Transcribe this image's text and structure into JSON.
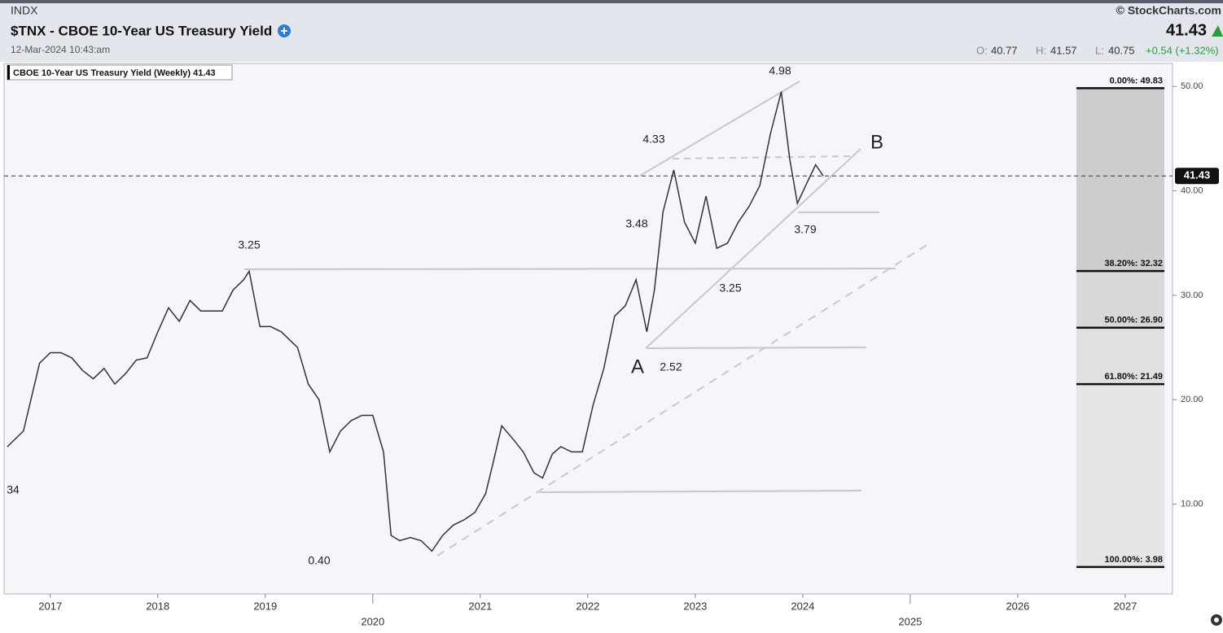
{
  "header": {
    "exchange": "INDX",
    "title": "$TNX - CBOE 10-Year US Treasury Yield",
    "timestamp": "12-Mar-2024 10:43:am",
    "brand": "© StockCharts.com",
    "last": "41.43",
    "open_label": "O:",
    "open": "40.77",
    "high_label": "H:",
    "high": "41.57",
    "low_label": "L:",
    "low": "40.75",
    "change": "+0.54 (+1.32%)"
  },
  "chart_data": {
    "type": "line",
    "series": [
      {
        "name": "CBOE 10-Year US Treasury Yield (Weekly)",
        "color": "#333333",
        "x": [
          2016.6,
          2016.75,
          2016.9,
          2017.0,
          2017.1,
          2017.2,
          2017.3,
          2017.4,
          2017.5,
          2017.6,
          2017.7,
          2017.8,
          2017.9,
          2018.0,
          2018.1,
          2018.2,
          2018.3,
          2018.4,
          2018.5,
          2018.6,
          2018.7,
          2018.8,
          2018.85,
          2018.95,
          2019.05,
          2019.15,
          2019.3,
          2019.4,
          2019.5,
          2019.6,
          2019.7,
          2019.8,
          2019.9,
          2020.0,
          2020.1,
          2020.17,
          2020.25,
          2020.35,
          2020.45,
          2020.55,
          2020.65,
          2020.75,
          2020.85,
          2020.95,
          2021.05,
          2021.12,
          2021.2,
          2021.3,
          2021.4,
          2021.5,
          2021.58,
          2021.67,
          2021.75,
          2021.85,
          2021.95,
          2022.05,
          2022.15,
          2022.25,
          2022.35,
          2022.45,
          2022.55,
          2022.62,
          2022.7,
          2022.8,
          2022.9,
          2023.0,
          2023.1,
          2023.2,
          2023.3,
          2023.4,
          2023.5,
          2023.6,
          2023.7,
          2023.8,
          2023.88,
          2023.95,
          2024.05,
          2024.12,
          2024.19
        ],
        "values": [
          15.5,
          17,
          23.5,
          24.5,
          24.5,
          24,
          22.8,
          22,
          23,
          21.5,
          22.5,
          23.8,
          24,
          26.5,
          28.8,
          27.5,
          29.5,
          28.5,
          28.5,
          28.5,
          30.5,
          31.5,
          32.3,
          27,
          27,
          26.5,
          25,
          21.5,
          20,
          15,
          17,
          18,
          18.5,
          18.5,
          15,
          7,
          6.5,
          6.8,
          6.5,
          5.5,
          7,
          8,
          8.5,
          9.2,
          11,
          14,
          17.5,
          16.3,
          15,
          13,
          12.5,
          14.8,
          15.5,
          15,
          15,
          19.5,
          23,
          28,
          29,
          31.5,
          26.5,
          30.5,
          38,
          42,
          37,
          35,
          39.5,
          34.5,
          35,
          37,
          38.5,
          40.5,
          45.5,
          49.5,
          43,
          38.8,
          41,
          42.5,
          41.43
        ]
      }
    ],
    "xlim": [
      2016.57,
      2027.44
    ],
    "xticks": [
      2017,
      2018,
      2019,
      2020,
      2021,
      2022,
      2023,
      2024,
      2025,
      2026,
      2027
    ],
    "ylim": [
      1.4,
      52.2
    ],
    "yticks": [
      {
        "value": 10,
        "label": "10.00"
      },
      {
        "value": 20,
        "label": "20.00"
      },
      {
        "value": 30,
        "label": "30.00"
      },
      {
        "value": 40,
        "label": "40.00"
      },
      {
        "value": 50,
        "label": "50.00"
      }
    ],
    "fib_levels": [
      {
        "value": 49.83,
        "label": "0.00%: 49.83"
      },
      {
        "value": 32.32,
        "label": "38.20%: 32.32"
      },
      {
        "value": 26.9,
        "label": "50.00%: 26.90"
      },
      {
        "value": 21.49,
        "label": "61.80%: 21.49"
      },
      {
        "value": 3.98,
        "label": "100.00%: 3.98"
      }
    ],
    "annotations": [
      "4.98",
      "4.33",
      "3.48",
      "3.25",
      "A",
      "2.52",
      "0.40",
      "3.79",
      "3.25",
      "B",
      "34"
    ]
  }
}
